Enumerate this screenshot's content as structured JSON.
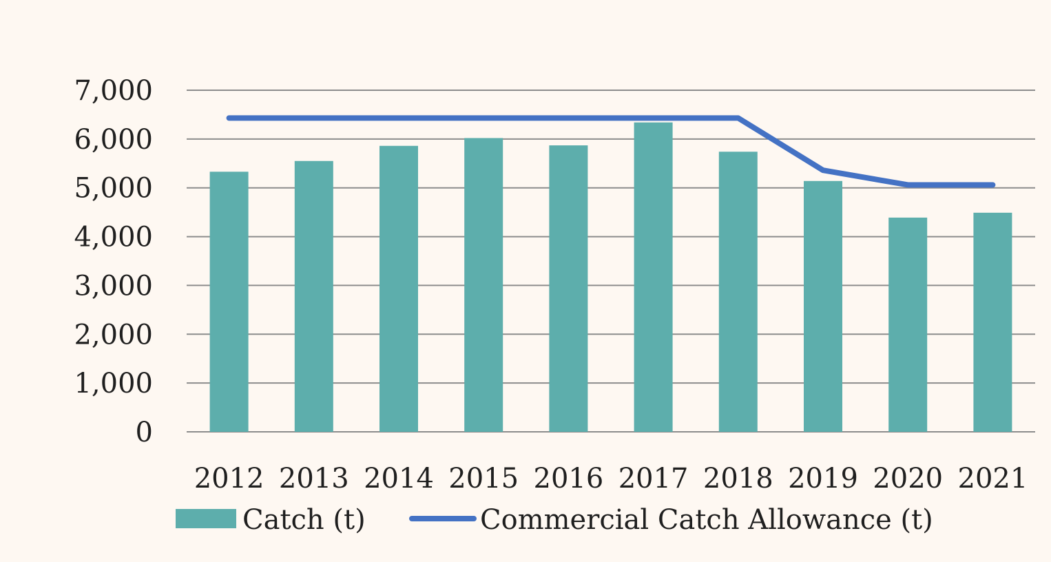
{
  "chart_data": {
    "type": "bar",
    "categories": [
      "2012",
      "2013",
      "2014",
      "2015",
      "2016",
      "2017",
      "2018",
      "2019",
      "2020",
      "2021"
    ],
    "series": [
      {
        "name": "Catch (t)",
        "kind": "bar",
        "color": "#5daeac",
        "values": [
          5330,
          5550,
          5860,
          6020,
          5870,
          6340,
          5740,
          5140,
          4390,
          4490
        ]
      },
      {
        "name": "Commercial Catch Allowance (t)",
        "kind": "line",
        "color": "#4472c4",
        "values": [
          6430,
          6430,
          6430,
          6430,
          6430,
          6430,
          6430,
          5360,
          5060,
          5060
        ]
      }
    ],
    "ylim": [
      0,
      7000
    ],
    "yticks": [
      "0",
      "1,000",
      "2,000",
      "3,000",
      "4,000",
      "5,000",
      "6,000",
      "7,000"
    ],
    "ytick_values": [
      0,
      1000,
      2000,
      3000,
      4000,
      5000,
      6000,
      7000
    ],
    "grid": true,
    "legend_position": "bottom",
    "gridline_color": "#8c8c8c",
    "background_color": "#fef8f2"
  }
}
